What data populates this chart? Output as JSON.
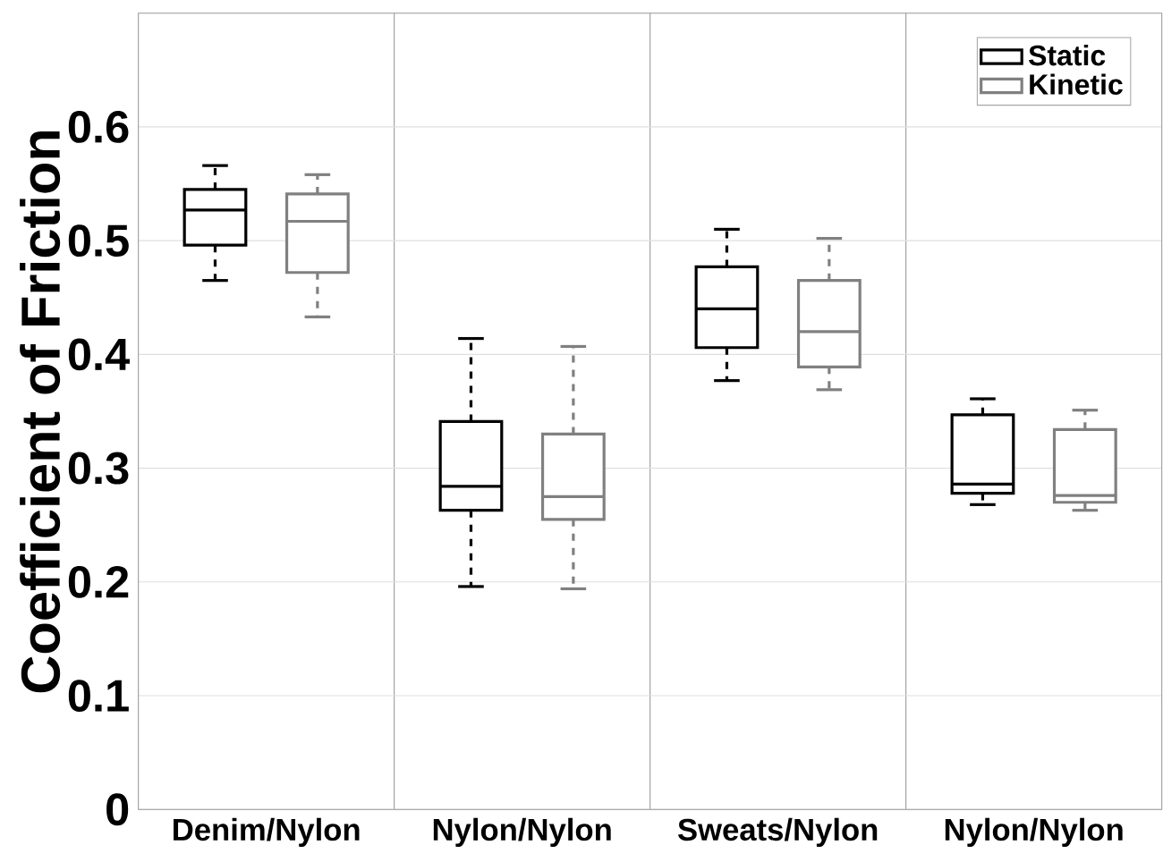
{
  "chart_data": {
    "type": "box",
    "ylabel": "Coefficient of Friction",
    "categories": [
      "Denim/Nylon",
      "Nylon/Nylon",
      "Sweats/Nylon",
      "Nylon/Nylon"
    ],
    "series": [
      {
        "name": "Static",
        "color": "#000000",
        "boxes": [
          {
            "low": 0.465,
            "q1": 0.496,
            "median": 0.527,
            "q3": 0.545,
            "high": 0.566
          },
          {
            "low": 0.196,
            "q1": 0.263,
            "median": 0.284,
            "q3": 0.341,
            "high": 0.414
          },
          {
            "low": 0.377,
            "q1": 0.406,
            "median": 0.44,
            "q3": 0.477,
            "high": 0.51
          },
          {
            "low": 0.268,
            "q1": 0.278,
            "median": 0.286,
            "q3": 0.347,
            "high": 0.361
          }
        ]
      },
      {
        "name": "Kinetic",
        "color": "#808080",
        "boxes": [
          {
            "low": 0.433,
            "q1": 0.472,
            "median": 0.517,
            "q3": 0.541,
            "high": 0.558
          },
          {
            "low": 0.194,
            "q1": 0.255,
            "median": 0.275,
            "q3": 0.33,
            "high": 0.407
          },
          {
            "low": 0.369,
            "q1": 0.389,
            "median": 0.42,
            "q3": 0.465,
            "high": 0.502
          },
          {
            "low": 0.263,
            "q1": 0.27,
            "median": 0.276,
            "q3": 0.334,
            "high": 0.351
          }
        ]
      }
    ],
    "ylim": [
      0,
      0.7
    ],
    "yticks": [
      0,
      0.1,
      0.2,
      0.3,
      0.4,
      0.5,
      0.6
    ],
    "grid": true,
    "legend": "top right",
    "line_style": "dashed"
  }
}
